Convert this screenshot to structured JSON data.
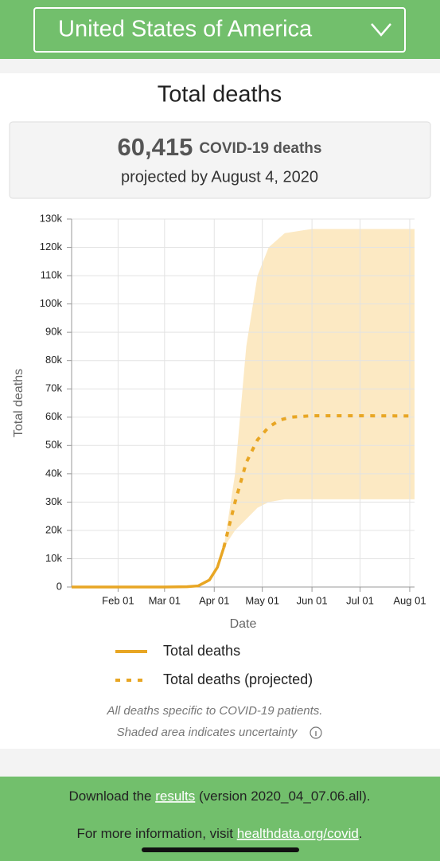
{
  "header": {
    "country": "United States of America"
  },
  "title": "Total deaths",
  "summary": {
    "number": "60,415",
    "label": "COVID-19 deaths",
    "sub": "projected by August 4, 2020"
  },
  "chart_data": {
    "type": "line",
    "x_label": "Date",
    "y_label": "Total deaths",
    "xlim": [
      "Jan 03",
      "Aug 04"
    ],
    "xticks": [
      "Feb 01",
      "Mar 01",
      "Apr 01",
      "May 01",
      "Jun 01",
      "Jul 01",
      "Aug 01"
    ],
    "ylim": [
      0,
      130000
    ],
    "yticks": [
      0,
      {
        "value": 10000,
        "label": "10k"
      },
      {
        "value": 20000,
        "label": "20k"
      },
      {
        "value": 30000,
        "label": "30k"
      },
      {
        "value": 40000,
        "label": "40k"
      },
      {
        "value": 50000,
        "label": "50k"
      },
      {
        "value": 60000,
        "label": "60k"
      },
      {
        "value": 70000,
        "label": "70k"
      },
      {
        "value": 80000,
        "label": "80k"
      },
      {
        "value": 90000,
        "label": "90k"
      },
      {
        "value": 100000,
        "label": "100k"
      },
      {
        "value": 110000,
        "label": "110k"
      },
      {
        "value": 120000,
        "label": "120k"
      },
      {
        "value": 130000,
        "label": "130k"
      }
    ],
    "grid": true,
    "series": [
      {
        "name": "Total deaths",
        "color": "#e8a624",
        "dashed": false,
        "x": [
          "Jan 03",
          "Mar 01",
          "Mar 15",
          "Mar 22",
          "Mar 29",
          "Apr 03",
          "Apr 07"
        ],
        "values": [
          0,
          0,
          100,
          400,
          2500,
          7000,
          14000
        ]
      },
      {
        "name": "Total deaths (projected)",
        "color": "#e8a624",
        "dashed": true,
        "x": [
          "Apr 07",
          "Apr 14",
          "Apr 21",
          "Apr 28",
          "May 05",
          "May 12",
          "May 19",
          "Jun 01",
          "Jul 01",
          "Aug 04"
        ],
        "values": [
          14000,
          30000,
          44000,
          52000,
          56500,
          59000,
          60000,
          60500,
          60500,
          60415
        ]
      }
    ],
    "band": {
      "color": "#fce9c3",
      "x": [
        "Apr 07",
        "Apr 14",
        "Apr 21",
        "Apr 28",
        "May 05",
        "May 15",
        "Jun 01",
        "Aug 04"
      ],
      "lower": [
        14000,
        20000,
        24000,
        28000,
        30000,
        31000,
        31000,
        31000
      ],
      "upper": [
        14000,
        40000,
        85000,
        110000,
        120000,
        125000,
        126500,
        126500
      ]
    }
  },
  "notes": [
    "All deaths specific to COVID-19 patients.",
    "Shaded area indicates uncertainty"
  ],
  "footer": {
    "download": {
      "pre": "Download the ",
      "link": "results",
      "post": " (version 2020_04_07.06.all)."
    },
    "info": {
      "pre": "For more information, visit ",
      "link": "healthdata.org/covid",
      "post": "."
    }
  }
}
